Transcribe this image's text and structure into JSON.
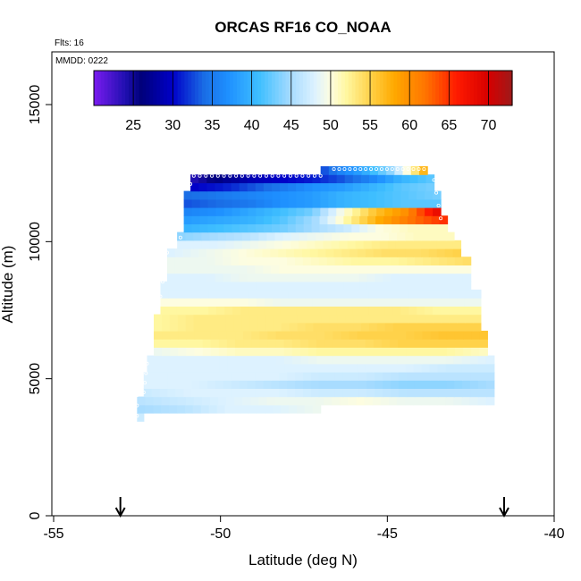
{
  "chart_data": {
    "type": "heatmap",
    "title": "ORCAS RF16 CO_NOAA",
    "flights_label": "Flts: 16",
    "date_label": "MMDD: 0222",
    "xlabel": "Latitude (deg N)",
    "ylabel": "Altitude (m)",
    "xlim": [
      -55,
      -40
    ],
    "ylim": [
      0,
      16500
    ],
    "x_ticks": [
      -55,
      -50,
      -45,
      -40
    ],
    "y_ticks": [
      0,
      5000,
      10000,
      15000
    ],
    "colorbar": {
      "range": [
        20,
        73
      ],
      "ticks": [
        25,
        30,
        35,
        40,
        45,
        50,
        55,
        60,
        65,
        70
      ],
      "stops": [
        {
          "v": 20,
          "c": "#7a1cf0"
        },
        {
          "v": 24,
          "c": "#1f0fb0"
        },
        {
          "v": 26,
          "c": "#00007a"
        },
        {
          "v": 30,
          "c": "#0000c8"
        },
        {
          "v": 34,
          "c": "#1a6ee6"
        },
        {
          "v": 37,
          "c": "#1e90ff"
        },
        {
          "v": 41,
          "c": "#3fbfff"
        },
        {
          "v": 45,
          "c": "#a8dcff"
        },
        {
          "v": 48,
          "c": "#ddf2ff"
        },
        {
          "v": 50,
          "c": "#fdfde0"
        },
        {
          "v": 52,
          "c": "#fff7a0"
        },
        {
          "v": 55,
          "c": "#ffd24a"
        },
        {
          "v": 58,
          "c": "#ffaa00"
        },
        {
          "v": 62,
          "c": "#ff7400"
        },
        {
          "v": 66,
          "c": "#ff1a00"
        },
        {
          "v": 70,
          "c": "#d60000"
        },
        {
          "v": 73,
          "c": "#9e1a1a"
        }
      ]
    },
    "arrows_lat": [
      -53,
      -41.5
    ],
    "curtain_layers": [
      {
        "alt": 3600,
        "lat_min": -52.5,
        "lat_max": -52.3,
        "co": [
          47
        ]
      },
      {
        "alt": 3900,
        "lat_min": -52.5,
        "lat_max": -47.0,
        "co": [
          45,
          46,
          48,
          48,
          49
        ]
      },
      {
        "alt": 4200,
        "lat_min": -52.5,
        "lat_max": -41.8,
        "co": [
          46,
          47,
          48,
          49,
          49,
          50,
          49,
          49,
          48
        ]
      },
      {
        "alt": 4500,
        "lat_min": -52.3,
        "lat_max": -41.8,
        "co": [
          47,
          48,
          48,
          48,
          47,
          47,
          46,
          46,
          46
        ]
      },
      {
        "alt": 4800,
        "lat_min": -52.3,
        "lat_max": -41.8,
        "co": [
          48,
          48,
          47,
          46,
          45,
          45,
          44,
          44,
          45
        ]
      },
      {
        "alt": 5100,
        "lat_min": -52.3,
        "lat_max": -41.8,
        "co": [
          48,
          48,
          48,
          48,
          47,
          47,
          46,
          46,
          46
        ]
      },
      {
        "alt": 5400,
        "lat_min": -52.2,
        "lat_max": -41.8,
        "co": [
          48,
          48,
          48,
          48,
          48,
          48,
          48,
          47,
          47
        ]
      },
      {
        "alt": 5700,
        "lat_min": -52.2,
        "lat_max": -41.8,
        "co": [
          48,
          48,
          48,
          48,
          49,
          49,
          49,
          49,
          48
        ]
      },
      {
        "alt": 6000,
        "lat_min": -52.0,
        "lat_max": -42.0,
        "co": [
          49,
          50,
          51,
          51,
          52,
          52,
          52,
          52,
          51
        ]
      },
      {
        "alt": 6300,
        "lat_min": -52.0,
        "lat_max": -42.0,
        "co": [
          52,
          52,
          53,
          53,
          54,
          54,
          55,
          55,
          55
        ]
      },
      {
        "alt": 6600,
        "lat_min": -52.0,
        "lat_max": -42.0,
        "co": [
          53,
          53,
          53,
          54,
          54,
          55,
          55,
          56,
          56
        ]
      },
      {
        "alt": 6900,
        "lat_min": -52.0,
        "lat_max": -42.2,
        "co": [
          52,
          53,
          53,
          53,
          54,
          54,
          55,
          55,
          55
        ]
      },
      {
        "alt": 7200,
        "lat_min": -52.0,
        "lat_max": -42.2,
        "co": [
          52,
          53,
          53,
          53,
          53,
          53,
          53,
          53,
          53
        ]
      },
      {
        "alt": 7500,
        "lat_min": -51.8,
        "lat_max": -42.2,
        "co": [
          52,
          52,
          53,
          53,
          53,
          53,
          53,
          52,
          52
        ]
      },
      {
        "alt": 7800,
        "lat_min": -51.8,
        "lat_max": -42.2,
        "co": [
          50,
          50,
          50,
          49,
          49,
          49,
          49,
          49,
          49
        ]
      },
      {
        "alt": 8100,
        "lat_min": -51.8,
        "lat_max": -42.2,
        "co": [
          48,
          48,
          48,
          48,
          48,
          48,
          48,
          48,
          48
        ]
      },
      {
        "alt": 8400,
        "lat_min": -51.8,
        "lat_max": -42.5,
        "co": [
          48,
          48,
          48,
          48,
          48,
          48,
          48,
          48,
          48
        ]
      },
      {
        "alt": 8700,
        "lat_min": -51.6,
        "lat_max": -42.5,
        "co": [
          48,
          48,
          49,
          49,
          49,
          49,
          48,
          48,
          48
        ]
      },
      {
        "alt": 9000,
        "lat_min": -51.6,
        "lat_max": -42.5,
        "co": [
          49,
          49,
          49,
          50,
          50,
          50,
          50,
          50,
          50
        ]
      },
      {
        "alt": 9300,
        "lat_min": -51.6,
        "lat_max": -42.5,
        "co": [
          49,
          49,
          50,
          50,
          51,
          52,
          52,
          53,
          54
        ]
      },
      {
        "alt": 9600,
        "lat_min": -51.6,
        "lat_max": -42.8,
        "co": [
          48,
          49,
          50,
          51,
          52,
          53,
          54,
          54,
          55
        ]
      },
      {
        "alt": 9900,
        "lat_min": -51.3,
        "lat_max": -42.8,
        "co": [
          48,
          48,
          49,
          50,
          51,
          52,
          53,
          53,
          53
        ]
      },
      {
        "alt": 10200,
        "lat_min": -51.3,
        "lat_max": -43.0,
        "co": [
          44,
          45,
          46,
          48,
          49,
          50,
          50,
          51,
          51
        ]
      },
      {
        "alt": 10500,
        "lat_min": -51.1,
        "lat_max": -43.2,
        "co": [
          40,
          41,
          42,
          43,
          45,
          47,
          50,
          51,
          51
        ]
      },
      {
        "alt": 10800,
        "lat_min": -51.1,
        "lat_max": -43.2,
        "co": [
          38,
          39,
          40,
          42,
          45,
          52,
          58,
          62,
          65
        ]
      },
      {
        "alt": 11100,
        "lat_min": -51.1,
        "lat_max": -43.4,
        "co": [
          36,
          37,
          39,
          41,
          43,
          50,
          56,
          60,
          68
        ]
      },
      {
        "alt": 11400,
        "lat_min": -51.1,
        "lat_max": -43.4,
        "co": [
          33,
          34,
          35,
          37,
          38,
          40,
          41,
          42,
          42
        ]
      },
      {
        "alt": 11700,
        "lat_min": -51.1,
        "lat_max": -43.4,
        "co": [
          34,
          35,
          36,
          37,
          38,
          40,
          41,
          42,
          43
        ]
      },
      {
        "alt": 12000,
        "lat_min": -50.9,
        "lat_max": -43.6,
        "co": [
          30,
          31,
          33,
          35,
          37,
          38,
          40,
          42,
          43
        ]
      },
      {
        "alt": 12300,
        "lat_min": -50.9,
        "lat_max": -43.6,
        "co": [
          24,
          27,
          29,
          30,
          31,
          33,
          36,
          40,
          42
        ]
      },
      {
        "alt": 12600,
        "lat_min": -47.0,
        "lat_max": -43.8,
        "co": [
          33,
          36,
          38,
          41,
          44,
          50,
          57
        ]
      }
    ],
    "flight_tracks": [
      {
        "lat_from": -50.8,
        "lat_to": -47.0,
        "alt": 12400,
        "n": 22
      },
      {
        "lat_from": -46.6,
        "lat_to": -43.9,
        "alt": 12650,
        "n": 18
      },
      {
        "lat_from": -50.9,
        "lat_to": -50.9,
        "alt_from": 12100,
        "alt_to": 12100,
        "n": 1
      },
      {
        "lat_from": -43.6,
        "lat_to": -43.4,
        "alt_from": 12250,
        "alt_to": 10850,
        "n": 4
      },
      {
        "lat_from": -51.2,
        "lat_to": -51.2,
        "alt_from": 10450,
        "alt_to": 10150,
        "n": 2
      },
      {
        "lat_from": -51.6,
        "lat_to": -51.8,
        "alt_from": 9600,
        "alt_to": 8000,
        "n": 4
      },
      {
        "lat_from": -52.2,
        "lat_to": -52.3,
        "alt_from": 5550,
        "alt_to": 4500,
        "n": 4
      },
      {
        "lat_from": -52.5,
        "lat_to": -52.5,
        "alt_from": 4400,
        "alt_to": 3650,
        "n": 3
      }
    ]
  }
}
